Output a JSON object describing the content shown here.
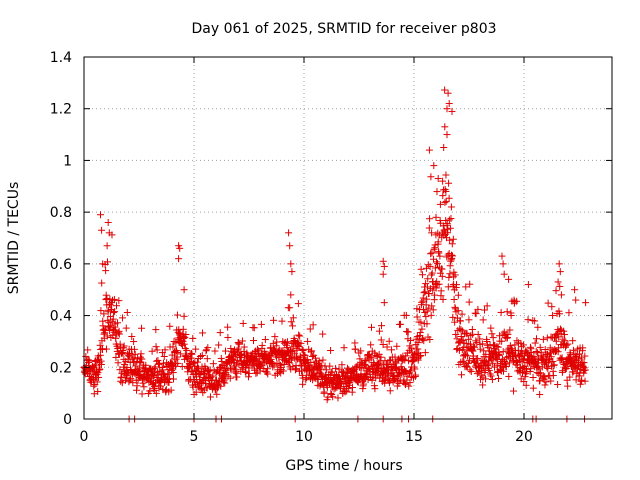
{
  "chart_data": {
    "type": "scatter",
    "title": "Day 061 of 2025, SRMTID for receiver p803",
    "xlabel": "GPS time / hours",
    "ylabel": "SRMTID / TECUs",
    "xlim": [
      0,
      24
    ],
    "ylim": [
      0,
      1.4
    ],
    "x_ticks": [
      "0",
      "5",
      "10",
      "15",
      "20"
    ],
    "x_tick_values": [
      0,
      5,
      10,
      15,
      20
    ],
    "y_ticks": [
      "0",
      "0.2",
      "0.4",
      "0.6",
      "0.8",
      "1",
      "1.2",
      "1.4"
    ],
    "y_tick_values": [
      0,
      0.2,
      0.4,
      0.6,
      0.8,
      1.0,
      1.2,
      1.4
    ],
    "grid": true,
    "marker": "+",
    "series_color": "#e00000",
    "envelope": [
      {
        "x": 0.0,
        "base": 0.2,
        "spread": 0.08
      },
      {
        "x": 0.6,
        "base": 0.16,
        "spread": 0.1
      },
      {
        "x": 0.9,
        "base": 0.35,
        "spread": 0.2
      },
      {
        "x": 1.3,
        "base": 0.42,
        "spread": 0.18
      },
      {
        "x": 1.7,
        "base": 0.22,
        "spread": 0.12
      },
      {
        "x": 2.3,
        "base": 0.2,
        "spread": 0.12
      },
      {
        "x": 3.0,
        "base": 0.15,
        "spread": 0.1
      },
      {
        "x": 4.0,
        "base": 0.18,
        "spread": 0.12
      },
      {
        "x": 4.3,
        "base": 0.33,
        "spread": 0.15
      },
      {
        "x": 5.0,
        "base": 0.17,
        "spread": 0.1
      },
      {
        "x": 6.0,
        "base": 0.15,
        "spread": 0.1
      },
      {
        "x": 7.0,
        "base": 0.24,
        "spread": 0.1
      },
      {
        "x": 8.0,
        "base": 0.22,
        "spread": 0.08
      },
      {
        "x": 9.0,
        "base": 0.24,
        "spread": 0.1
      },
      {
        "x": 9.5,
        "base": 0.28,
        "spread": 0.15
      },
      {
        "x": 10.0,
        "base": 0.22,
        "spread": 0.1
      },
      {
        "x": 11.0,
        "base": 0.15,
        "spread": 0.1
      },
      {
        "x": 12.0,
        "base": 0.15,
        "spread": 0.08
      },
      {
        "x": 13.0,
        "base": 0.2,
        "spread": 0.1
      },
      {
        "x": 14.0,
        "base": 0.18,
        "spread": 0.1
      },
      {
        "x": 15.0,
        "base": 0.22,
        "spread": 0.12
      },
      {
        "x": 15.5,
        "base": 0.45,
        "spread": 0.3
      },
      {
        "x": 16.0,
        "base": 0.6,
        "spread": 0.3
      },
      {
        "x": 16.6,
        "base": 0.75,
        "spread": 0.4
      },
      {
        "x": 17.0,
        "base": 0.3,
        "spread": 0.2
      },
      {
        "x": 18.0,
        "base": 0.22,
        "spread": 0.1
      },
      {
        "x": 19.0,
        "base": 0.25,
        "spread": 0.15
      },
      {
        "x": 20.0,
        "base": 0.22,
        "spread": 0.12
      },
      {
        "x": 21.0,
        "base": 0.2,
        "spread": 0.12
      },
      {
        "x": 21.6,
        "base": 0.3,
        "spread": 0.18
      },
      {
        "x": 22.0,
        "base": 0.22,
        "spread": 0.12
      },
      {
        "x": 22.8,
        "base": 0.22,
        "spread": 0.12
      }
    ],
    "spikes": [
      {
        "x": 0.75,
        "y": 0.79
      },
      {
        "x": 0.8,
        "y": 0.73
      },
      {
        "x": 1.1,
        "y": 0.76
      },
      {
        "x": 1.15,
        "y": 0.72
      },
      {
        "x": 1.05,
        "y": 0.67
      },
      {
        "x": 0.85,
        "y": 0.6
      },
      {
        "x": 4.3,
        "y": 0.67
      },
      {
        "x": 4.35,
        "y": 0.66
      },
      {
        "x": 4.3,
        "y": 0.62
      },
      {
        "x": 4.55,
        "y": 0.5
      },
      {
        "x": 9.3,
        "y": 0.72
      },
      {
        "x": 9.35,
        "y": 0.67
      },
      {
        "x": 9.4,
        "y": 0.6
      },
      {
        "x": 9.45,
        "y": 0.57
      },
      {
        "x": 9.4,
        "y": 0.48
      },
      {
        "x": 13.6,
        "y": 0.61
      },
      {
        "x": 13.65,
        "y": 0.59
      },
      {
        "x": 13.6,
        "y": 0.56
      },
      {
        "x": 13.65,
        "y": 0.45
      },
      {
        "x": 15.7,
        "y": 1.04
      },
      {
        "x": 15.9,
        "y": 0.98
      },
      {
        "x": 16.1,
        "y": 0.93
      },
      {
        "x": 16.3,
        "y": 0.92
      },
      {
        "x": 16.4,
        "y": 1.13
      },
      {
        "x": 16.5,
        "y": 1.2
      },
      {
        "x": 16.55,
        "y": 1.26
      },
      {
        "x": 16.5,
        "y": 1.1
      },
      {
        "x": 16.35,
        "y": 1.05
      },
      {
        "x": 16.6,
        "y": 1.22
      },
      {
        "x": 16.45,
        "y": 0.88
      },
      {
        "x": 16.2,
        "y": 0.83
      },
      {
        "x": 16.0,
        "y": 0.78
      },
      {
        "x": 16.7,
        "y": 0.82
      },
      {
        "x": 15.8,
        "y": 0.72
      },
      {
        "x": 16.6,
        "y": 0.64
      },
      {
        "x": 16.8,
        "y": 0.55
      },
      {
        "x": 19.0,
        "y": 0.63
      },
      {
        "x": 19.05,
        "y": 0.6
      },
      {
        "x": 19.1,
        "y": 0.56
      },
      {
        "x": 19.3,
        "y": 0.54
      },
      {
        "x": 20.2,
        "y": 0.52
      },
      {
        "x": 21.6,
        "y": 0.6
      },
      {
        "x": 21.65,
        "y": 0.57
      },
      {
        "x": 21.55,
        "y": 0.53
      },
      {
        "x": 21.7,
        "y": 0.48
      },
      {
        "x": 22.3,
        "y": 0.5
      },
      {
        "x": 22.35,
        "y": 0.46
      },
      {
        "x": 22.8,
        "y": 0.45
      }
    ],
    "zero_points": [
      2.05,
      2.3,
      5.0,
      6.0,
      6.25,
      9.6,
      12.45,
      13.6,
      14.45,
      14.75,
      15.85,
      20.4,
      20.55,
      21.95,
      22.75
    ]
  }
}
